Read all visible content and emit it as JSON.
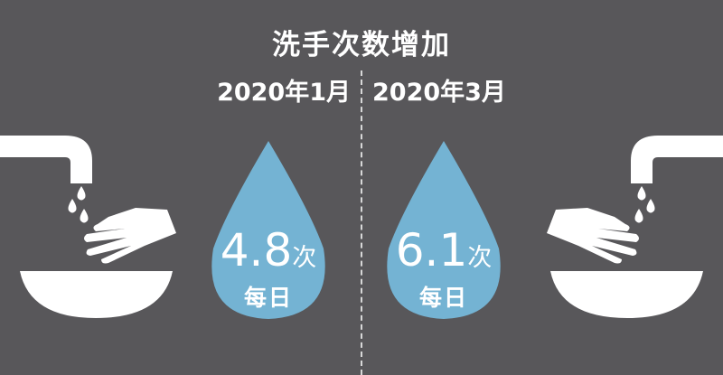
{
  "title": "洗手次数增加",
  "before": {
    "date": "2020年1月",
    "value": "4.8",
    "unit": "次",
    "per": "每日"
  },
  "after": {
    "date": "2020年3月",
    "value": "6.1",
    "unit": "次",
    "per": "每日"
  },
  "colors": {
    "background": "#58575a",
    "drop": "#74b3d3",
    "icon": "#ffffff"
  },
  "icons": [
    "faucet-icon",
    "water-drops-icon",
    "hand-icon",
    "basin-icon",
    "water-drop-icon"
  ]
}
